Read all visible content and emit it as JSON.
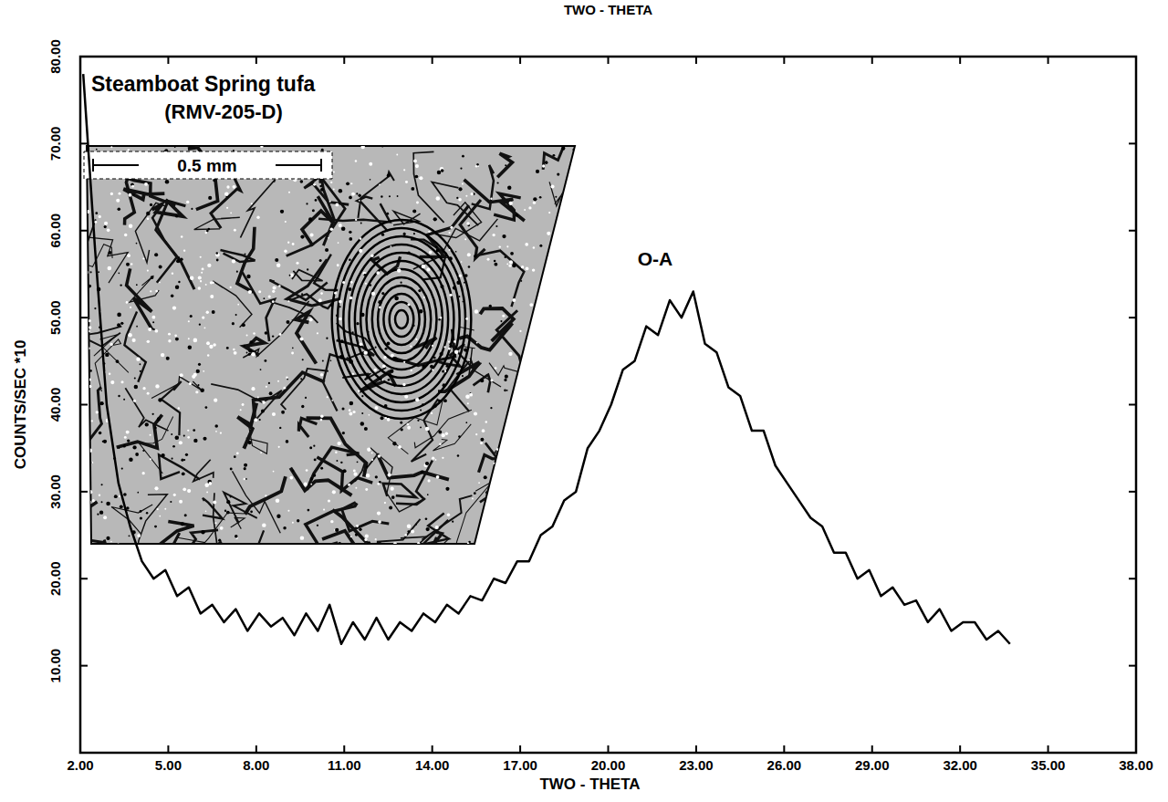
{
  "chart_data": {
    "type": "line",
    "top_label": "TWO - THETA",
    "x_label": "TWO - THETA",
    "y_label": "COUNTS/SEC *10",
    "x": [
      2.1,
      2.5,
      2.9,
      3.3,
      3.7,
      4.1,
      4.5,
      4.9,
      5.3,
      5.7,
      6.1,
      6.5,
      6.9,
      7.3,
      7.7,
      8.1,
      8.5,
      8.9,
      9.3,
      9.7,
      10.1,
      10.5,
      10.9,
      11.3,
      11.7,
      12.1,
      12.5,
      12.9,
      13.3,
      13.7,
      14.1,
      14.5,
      14.9,
      15.3,
      15.7,
      16.1,
      16.5,
      16.9,
      17.3,
      17.7,
      18.1,
      18.5,
      18.9,
      19.3,
      19.7,
      20.1,
      20.5,
      20.9,
      21.3,
      21.7,
      22.1,
      22.5,
      22.9,
      23.3,
      23.7,
      24.1,
      24.5,
      24.9,
      25.3,
      25.7,
      26.1,
      26.5,
      26.9,
      27.3,
      27.7,
      28.1,
      28.5,
      28.9,
      29.3,
      29.7,
      30.1,
      30.5,
      30.9,
      31.3,
      31.7,
      32.1,
      32.5,
      32.9,
      33.3,
      33.7
    ],
    "series": [
      {
        "color": "#000000",
        "values": [
          78,
          58,
          40,
          31,
          26,
          22,
          20,
          21,
          18,
          19,
          16,
          17,
          15,
          16.5,
          14,
          16,
          14.5,
          15.5,
          13.5,
          16,
          14,
          17,
          12.5,
          15,
          13,
          15.5,
          13,
          15,
          14,
          16,
          15,
          17,
          16,
          18,
          17.5,
          20,
          19.5,
          22,
          22,
          25,
          26,
          29,
          30,
          35,
          37,
          40,
          44,
          45,
          49,
          48,
          52,
          50,
          53,
          47,
          46,
          42,
          41,
          37,
          37,
          33,
          31,
          29,
          27,
          26,
          23,
          23,
          20,
          21,
          18,
          19,
          17,
          17.5,
          15,
          16.5,
          14,
          15,
          15,
          13,
          14,
          12.5
        ]
      }
    ],
    "xlim": [
      2,
      38
    ],
    "ylim": [
      0,
      80
    ],
    "xticks": [
      {
        "value": 2,
        "label": "2.00"
      },
      {
        "value": 5,
        "label": "5.00"
      },
      {
        "value": 8,
        "label": "8.00"
      },
      {
        "value": 11,
        "label": "11.00"
      },
      {
        "value": 14,
        "label": "14.00"
      },
      {
        "value": 17,
        "label": "17.00"
      },
      {
        "value": 20,
        "label": "20.00"
      },
      {
        "value": 23,
        "label": "23.00"
      },
      {
        "value": 26,
        "label": "26.00"
      },
      {
        "value": 29,
        "label": "29.00"
      },
      {
        "value": 32,
        "label": "32.00"
      },
      {
        "value": 35,
        "label": "35.00"
      },
      {
        "value": 38,
        "label": "38.00"
      }
    ],
    "yticks": [
      {
        "value": 10,
        "label": "10.00"
      },
      {
        "value": 20,
        "label": "20.00"
      },
      {
        "value": 30,
        "label": "30.00"
      },
      {
        "value": 40,
        "label": "40.00"
      },
      {
        "value": 50,
        "label": "50.00"
      },
      {
        "value": 60,
        "label": "60.00"
      },
      {
        "value": 70,
        "label": "70.00"
      },
      {
        "value": 80,
        "label": "80.00"
      }
    ],
    "annotations": [
      {
        "text": "O-A",
        "x": 21.6,
        "y": 56
      }
    ],
    "inset": {
      "title": "Steamboat Spring tufa",
      "sample": "(RMV-205-D)",
      "scale_bar": "0.5 mm"
    }
  }
}
